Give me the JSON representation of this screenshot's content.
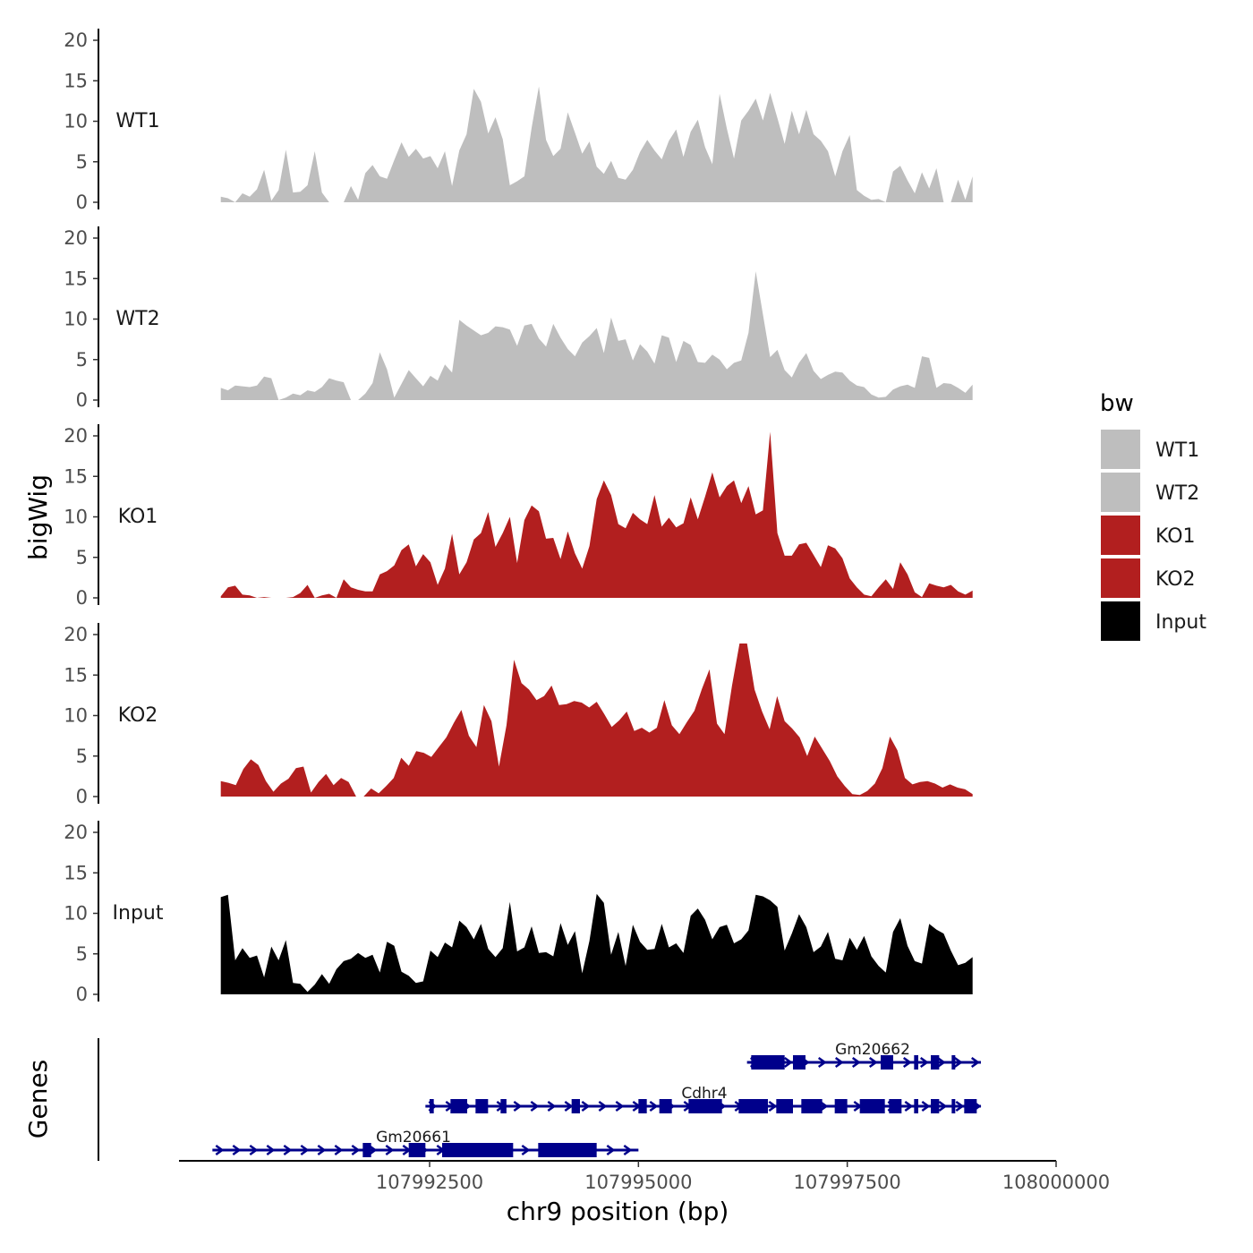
{
  "chart_data": {
    "type": "area",
    "ylabel": "bigWig",
    "xlabel": "chr9 position (bp)",
    "genes_label": "Genes",
    "ylim": [
      0,
      21
    ],
    "y_ticks": [
      0,
      5,
      10,
      15,
      20
    ],
    "xlim": [
      107989500,
      108000000
    ],
    "x_ticks": [
      107992500,
      107995000,
      107997500,
      108000000
    ],
    "x_tick_labels": [
      "107992500",
      "107995000",
      "107997500",
      "108000000"
    ],
    "x_range": [
      107990000,
      107999000
    ],
    "legend": {
      "title": "bw",
      "position": "right",
      "entries": [
        {
          "label": "WT1",
          "color": "#bebebe"
        },
        {
          "label": "WT2",
          "color": "#bebebe"
        },
        {
          "label": "KO1",
          "color": "#b21f1f"
        },
        {
          "label": "KO2",
          "color": "#b21f1f"
        },
        {
          "label": "Input",
          "color": "#000000"
        }
      ]
    },
    "series": [
      {
        "name": "WT1",
        "color": "#bebebe",
        "values": [
          0.7,
          0.5,
          0,
          1.1,
          0.7,
          1.6,
          4,
          0.2,
          1.5,
          6.5,
          1.2,
          1.3,
          2.1,
          6.3,
          1.2,
          0,
          0,
          0,
          2,
          0.3,
          3.6,
          4.6,
          3.2,
          2.9,
          5.2,
          7.4,
          5.6,
          6.6,
          5.4,
          5.7,
          4.2,
          6.3,
          2,
          6.4,
          8.4,
          14,
          12.4,
          8.5,
          10.5,
          7.8,
          2.1,
          2.6,
          3.2,
          9.2,
          14.3,
          7.7,
          5.7,
          6.6,
          11.1,
          8.6,
          6,
          7.5,
          4.4,
          3.5,
          5.1,
          3,
          2.8,
          4,
          6.2,
          7.7,
          6.4,
          5.3,
          7.6,
          9,
          5.6,
          8.7,
          10.2,
          6.8,
          4.7,
          13.4,
          9.1,
          5.4,
          10.1,
          11.3,
          12.8,
          10.1,
          13.5,
          10.4,
          7.2,
          11.3,
          8.4,
          11.4,
          8.4,
          7.6,
          6.3,
          3.2,
          6.3,
          8.3,
          1.5,
          0.8,
          0.3,
          0.4,
          0,
          3.8,
          4.5,
          2.7,
          1.1,
          3.7,
          1.7,
          4.2,
          0,
          0,
          2.8,
          0.3,
          3.2
        ]
      },
      {
        "name": "WT2",
        "color": "#bebebe",
        "values": [
          1.5,
          1.2,
          1.8,
          1.7,
          1.6,
          1.8,
          2.9,
          2.7,
          0,
          0.3,
          0.8,
          0.6,
          1.2,
          1,
          1.6,
          2.7,
          2.4,
          2.2,
          0,
          0,
          0.8,
          2.1,
          5.9,
          3.8,
          0.3,
          2,
          3.7,
          2.7,
          1.7,
          3,
          2.4,
          4.4,
          3.4,
          9.9,
          9.2,
          8.6,
          8,
          8.3,
          9.1,
          9,
          8.7,
          6.7,
          9.2,
          9.4,
          7.6,
          6.6,
          9.4,
          7.7,
          6.3,
          5.4,
          7.1,
          7.9,
          8.9,
          5.8,
          10.2,
          7.3,
          7.5,
          4.9,
          6.9,
          6,
          4.5,
          8,
          7.7,
          4.7,
          7.3,
          6.8,
          4.7,
          4.6,
          5.6,
          5,
          3.8,
          4.6,
          4.9,
          8.3,
          15.9,
          10.6,
          5.3,
          6.2,
          3.7,
          2.8,
          4.6,
          5.8,
          3.6,
          2.6,
          3.1,
          3.5,
          3.4,
          2.4,
          1.8,
          1.6,
          0.7,
          0.3,
          0.4,
          1.3,
          1.7,
          1.9,
          1.5,
          5.4,
          5.2,
          1.5,
          2.1,
          2,
          1.5,
          0.9,
          1.9
        ]
      },
      {
        "name": "KO1",
        "color": "#b21f1f",
        "values": [
          0.2,
          1.3,
          1.5,
          0.4,
          0.3,
          0,
          0.1,
          0,
          0,
          0,
          0.1,
          0.6,
          1.6,
          0,
          0.3,
          0.5,
          0,
          2.3,
          1.3,
          1,
          0.8,
          0.8,
          2.9,
          3.3,
          4,
          5.9,
          6.6,
          3.9,
          5.4,
          4.4,
          1.6,
          3.6,
          7.9,
          2.9,
          4.4,
          7.2,
          8,
          10.6,
          6.3,
          8,
          10,
          4.3,
          9.6,
          11.4,
          10.7,
          7.3,
          7.4,
          4.8,
          8.2,
          5.5,
          3.6,
          6.4,
          12.2,
          14.5,
          12.7,
          9.1,
          8.6,
          10.5,
          9.7,
          9.1,
          12.7,
          8.8,
          9.9,
          8.7,
          9.2,
          12.4,
          9.7,
          12.5,
          15.5,
          12.4,
          13.8,
          14.5,
          11.7,
          13.8,
          10.3,
          10.8,
          20.5,
          8,
          5.2,
          5.2,
          6.6,
          6.8,
          5.3,
          3.8,
          6.5,
          6.1,
          4.9,
          2.4,
          1.3,
          0.4,
          0.2,
          1.3,
          2.3,
          1.1,
          4.4,
          2.9,
          0.7,
          0.1,
          1.8,
          1.5,
          1.3,
          1.6,
          0.8,
          0.4,
          0.9
        ]
      },
      {
        "name": "KO2",
        "color": "#b21f1f",
        "values": [
          1.9,
          1.7,
          1.4,
          3.4,
          4.6,
          3.9,
          1.9,
          0.6,
          1.6,
          2.2,
          3.5,
          3.7,
          0.5,
          1.8,
          2.8,
          1.4,
          2.3,
          1.8,
          0,
          0,
          1,
          0.4,
          1.3,
          2.3,
          4.8,
          3.8,
          5.6,
          5.4,
          4.9,
          6.1,
          7.3,
          9.1,
          10.7,
          7.5,
          6.1,
          11.3,
          9.3,
          3.7,
          8.8,
          16.9,
          14,
          13.2,
          11.9,
          12.4,
          13.7,
          11.3,
          11.4,
          11.8,
          11.6,
          11,
          11.7,
          10.2,
          8.6,
          9.4,
          10.5,
          8.1,
          8.5,
          7.9,
          8.5,
          11.9,
          8.8,
          7.7,
          9.2,
          10.6,
          13.3,
          15.7,
          9,
          7.7,
          13.7,
          18.9,
          18.9,
          13.2,
          10.5,
          8.3,
          12.4,
          9.3,
          8.4,
          7.3,
          5,
          7.4,
          5.9,
          4.4,
          2.5,
          1.3,
          0.3,
          0.2,
          0.7,
          1.6,
          3.5,
          7.4,
          5.7,
          2.3,
          1.5,
          1.8,
          1.9,
          1.6,
          1.1,
          1.5,
          1.1,
          0.9,
          0.3
        ]
      },
      {
        "name": "Input",
        "color": "#000000",
        "values": [
          12,
          12.3,
          4.2,
          5.7,
          4.5,
          4.8,
          2.1,
          5.9,
          4.2,
          6.7,
          1.4,
          1.3,
          0.3,
          1.2,
          2.5,
          1.3,
          3.1,
          4.1,
          4.4,
          5.1,
          4.5,
          4.9,
          2.7,
          6.5,
          6,
          2.8,
          2.3,
          1.4,
          1.6,
          5.4,
          4.6,
          6.4,
          5.8,
          9.1,
          8.3,
          6.8,
          8.7,
          5.6,
          4.6,
          5.7,
          11.4,
          5.3,
          5.8,
          8.4,
          5.1,
          5.2,
          4.7,
          8.8,
          6.1,
          7.8,
          2.6,
          6.6,
          12.4,
          11.3,
          4.9,
          7.7,
          3.5,
          8.6,
          6.5,
          5.5,
          5.6,
          8.7,
          5.8,
          6.3,
          5.1,
          9.7,
          10.6,
          9.2,
          6.8,
          8.3,
          8.6,
          6.3,
          6.8,
          7.9,
          12.3,
          12.1,
          11.6,
          10.8,
          5.4,
          7.5,
          9.9,
          8.3,
          5.2,
          5.9,
          7.7,
          4.4,
          4.2,
          7,
          5.5,
          7.2,
          4.7,
          3.5,
          2.7,
          7.7,
          9.4,
          6,
          4.1,
          3.8,
          8.7,
          8,
          7.5,
          5.4,
          3.6,
          3.9,
          4.6
        ]
      }
    ],
    "genes": [
      {
        "name": "Gm20662",
        "start": 107996300,
        "end": 107999100,
        "exons": [
          [
            107996350,
            107996750
          ],
          [
            107996850,
            107997000
          ],
          [
            107997900,
            107998050
          ],
          [
            107998300,
            107998350
          ],
          [
            107998500,
            107998600
          ],
          [
            107998750,
            107998780
          ]
        ]
      },
      {
        "name": "Cdhr4",
        "start": 107992450,
        "end": 107999100,
        "exons": [
          [
            107992500,
            107992550
          ],
          [
            107992750,
            107992950
          ],
          [
            107993050,
            107993200
          ],
          [
            107993350,
            107993420
          ],
          [
            107994200,
            107994300
          ],
          [
            107995000,
            107995100
          ],
          [
            107995250,
            107995400
          ],
          [
            107995600,
            107996000
          ],
          [
            107996200,
            107996550
          ],
          [
            107996650,
            107996850
          ],
          [
            107996950,
            107997200
          ],
          [
            107997350,
            107997500
          ],
          [
            107997650,
            107997950
          ],
          [
            107998000,
            107998150
          ],
          [
            107998300,
            107998350
          ],
          [
            107998500,
            107998600
          ],
          [
            107998750,
            107998780
          ],
          [
            107998900,
            107999050
          ]
        ]
      },
      {
        "name": "Gm20661",
        "start": 107989900,
        "end": 107995000,
        "exons": [
          [
            107991700,
            107991800
          ],
          [
            107992250,
            107992450
          ],
          [
            107992650,
            107993500
          ],
          [
            107993800,
            107994500
          ]
        ]
      }
    ]
  }
}
